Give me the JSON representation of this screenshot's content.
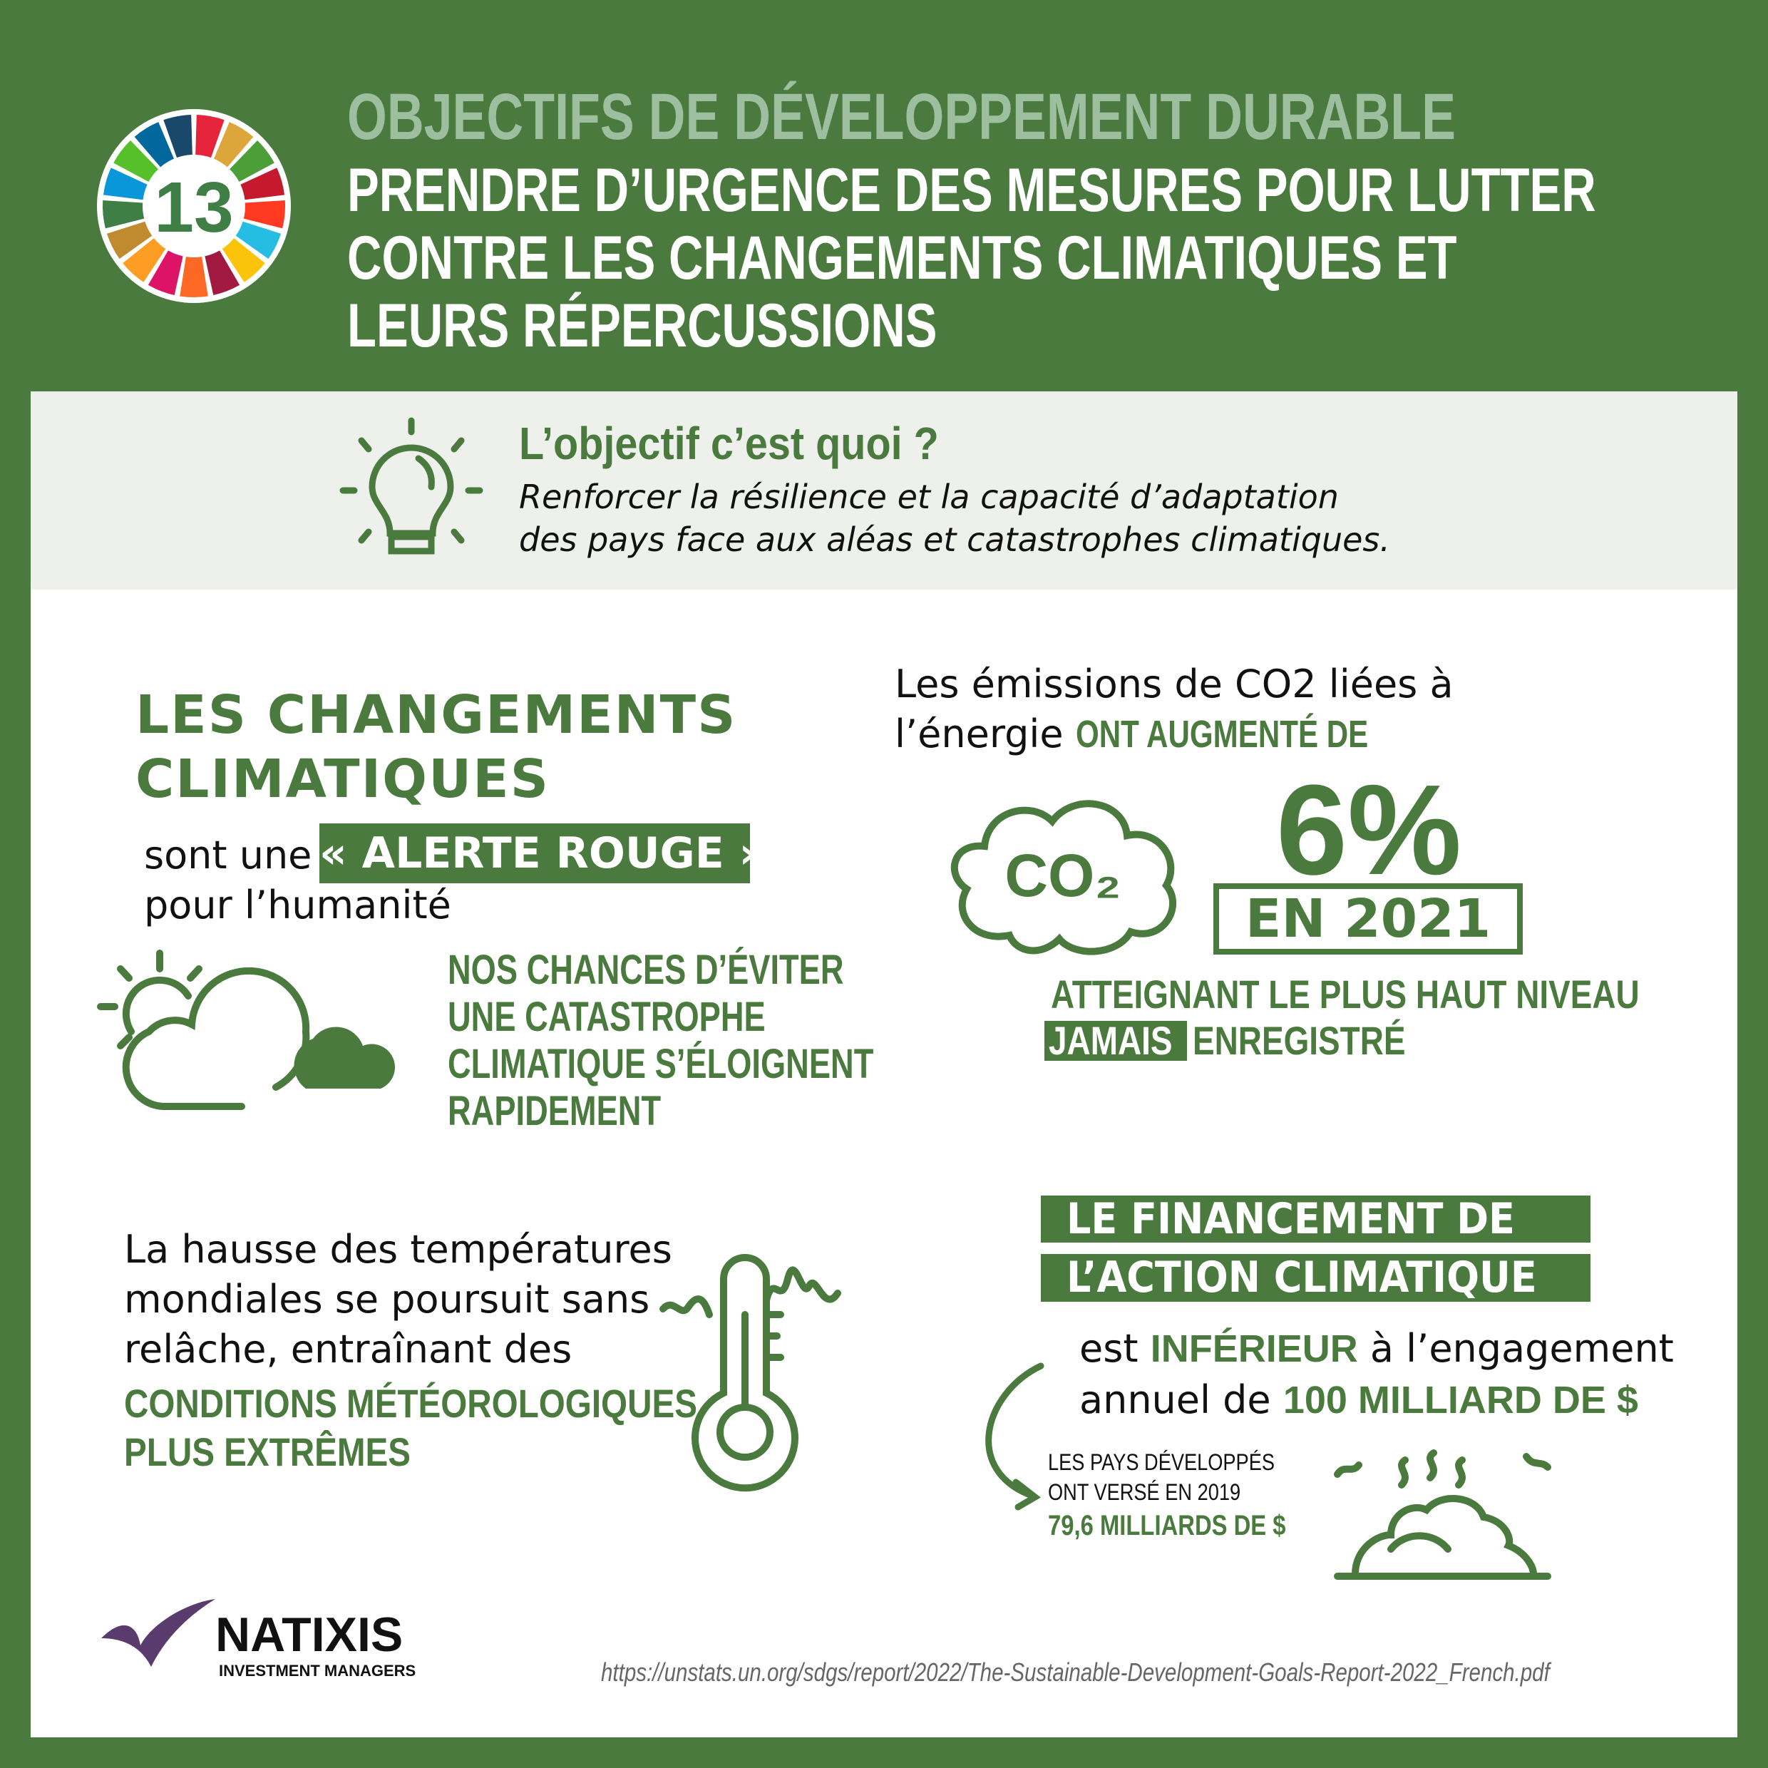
{
  "colors": {
    "brand_green": "#4a7a3d",
    "light_green": "#9dbfa0",
    "band_grey": "#eef0ec"
  },
  "sdg_wheel": {
    "goal_number": "13",
    "segment_colors": [
      "#e5243b",
      "#dda63a",
      "#4c9f38",
      "#c5192d",
      "#ff3a21",
      "#26bde2",
      "#fcc30b",
      "#a21942",
      "#fd6925",
      "#dd1367",
      "#fd9d24",
      "#bf8b2e",
      "#3f7e44",
      "#0a97d9",
      "#56c02b",
      "#00689d",
      "#19486a"
    ]
  },
  "header": {
    "kicker": "OBJECTIFS DE DÉVELOPPEMENT DURABLE",
    "title_lines": [
      "PRENDRE D’URGENCE DES MESURES POUR LUTTER",
      "CONTRE LES CHANGEMENTS CLIMATIQUES ET",
      "LEURS RÉPERCUSSIONS"
    ]
  },
  "objective": {
    "icon": "lightbulb-icon",
    "question": "L’objectif c’est quoi ?",
    "lines": [
      "Renforcer la résilience et la capacité d’adaptation",
      "des pays face aux aléas et catastrophes climatiques."
    ]
  },
  "climate_change": {
    "heading_lines": [
      "LES CHANGEMENTS",
      "CLIMATIQUES"
    ],
    "prefix": "sont une",
    "highlight": "« ALERTE ROUGE »",
    "suffix": "pour l’humanité",
    "icon": "sun-cloud-icon",
    "chances_lines": [
      "NOS CHANCES D’ÉVITER",
      "UNE CATASTROPHE",
      "CLIMATIQUE S’ÉLOIGNENT",
      "RAPIDEMENT"
    ]
  },
  "emissions": {
    "line1": "Les émissions de CO2 liées à",
    "line2_plain": "l’énergie",
    "line2_green": "ONT AUGMENTÉ DE",
    "cloud_label": "CO₂",
    "percent": "6%",
    "year": "EN 2021",
    "record_line1": "ATTEIGNANT LE PLUS HAUT NIVEAU",
    "record_highlight": "JAMAIS",
    "record_rest": "ENREGISTRÉ"
  },
  "temperature": {
    "lines": [
      "La hausse des températures",
      "mondiales se poursuit sans",
      "relâche, entraînant des"
    ],
    "green_lines": [
      "CONDITIONS MÉTÉOROLOGIQUES",
      "PLUS EXTRÊMES"
    ],
    "icon": "thermometer-icon"
  },
  "finance": {
    "heading_lines": [
      "LE FINANCEMENT DE",
      "L’ACTION CLIMATIQUE"
    ],
    "l1_a": "est",
    "l1_green": "INFÉRIEUR",
    "l1_b": "à l’engagement",
    "l2_a": "annuel de",
    "l2_green": "100 MILLIARD DE $",
    "small_lines": [
      "LES PAYS DÉVELOPPÉS",
      "ONT VERSÉ EN 2019"
    ],
    "small_green": "79,6 MILLIARDS DE $",
    "icon": "burning-money-pile-icon"
  },
  "footer": {
    "logo_name": "NATIXIS",
    "logo_sub": "INVESTMENT MANAGERS",
    "source_url": "https://unstats.un.org/sdgs/report/2022/The-Sustainable-Development-Goals-Report-2022_French.pdf"
  }
}
